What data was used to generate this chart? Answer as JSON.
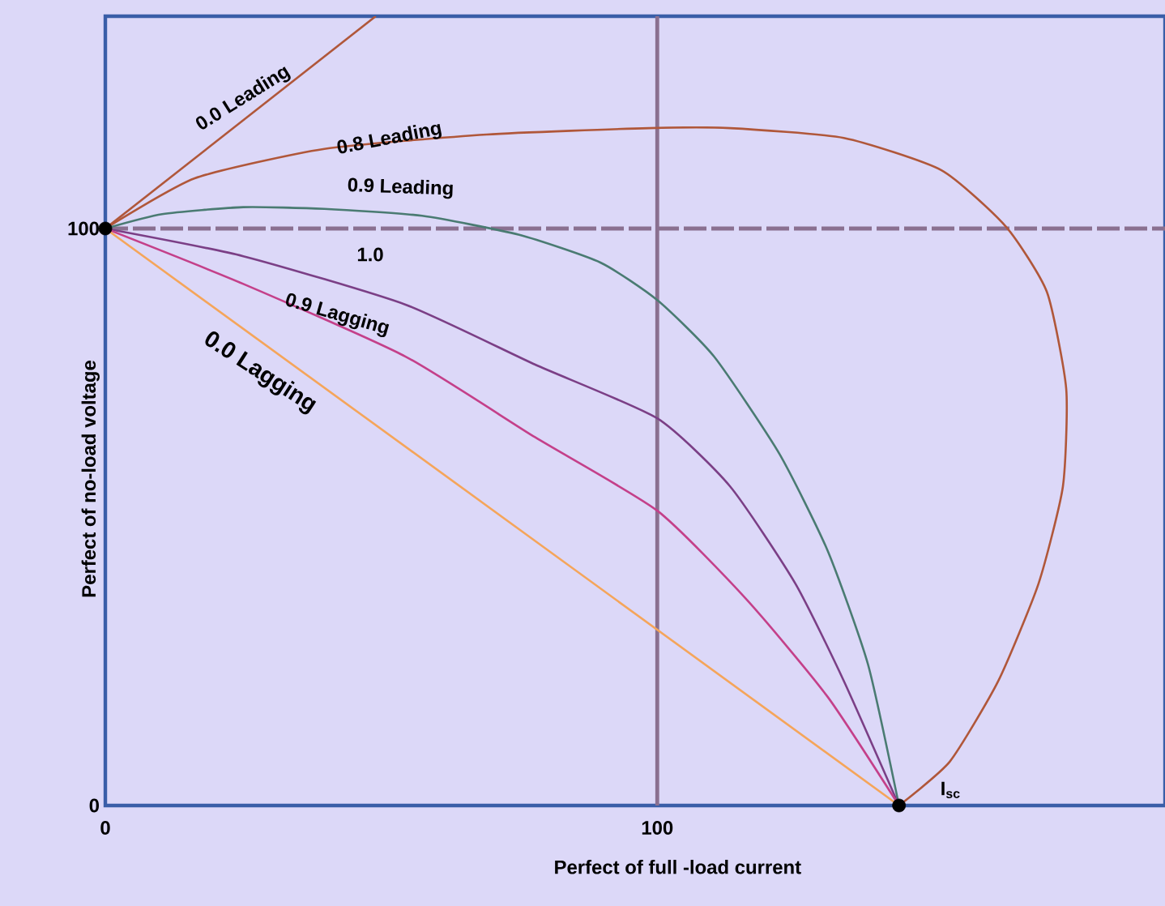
{
  "chart_data": {
    "type": "line",
    "xlabel": "Perfect of full -load current",
    "ylabel": "Perfect of no-load voltage",
    "xlim": [
      0,
      192
    ],
    "ylim": [
      0,
      136.8
    ],
    "xticks": [
      0,
      100
    ],
    "yticks": [
      0,
      100
    ],
    "grid": false,
    "legend": false,
    "marker": "none",
    "line_style": "solid",
    "ref_lines": [
      {
        "axis": "x",
        "value": 100,
        "color": "#8a7090",
        "line_style": "solid"
      },
      {
        "axis": "y",
        "value": 100,
        "color": "#8a7090",
        "line_style": "dashed"
      }
    ],
    "annotations": [
      {
        "text": "I$_{sc}$",
        "x": 143.8,
        "y": 0
      }
    ],
    "series": [
      {
        "name": "0.0 Leading",
        "color": "#b0573a",
        "x": [
          0,
          49
        ],
        "values": [
          100,
          136.8
        ]
      },
      {
        "name": "0.8 Leading",
        "color": "#b0573a",
        "x": [
          0,
          16.2,
          39.7,
          69.1,
          98.5,
          113.2,
          133.8,
          151.5,
          163.2,
          170.6,
          174.1,
          173.5,
          169.1,
          161.8,
          153,
          143.8
        ],
        "values": [
          100,
          108.7,
          113.8,
          116.3,
          117.4,
          117.4,
          115.7,
          110.1,
          100.3,
          89,
          72.2,
          55.3,
          38.5,
          21.6,
          7.6,
          0
        ]
      },
      {
        "name": "0.9 Leading",
        "color": "#4a7b72",
        "x": [
          0,
          10.3,
          25,
          39.7,
          57.4,
          75,
          89.7,
          100,
          110.3,
          122.1,
          130.9,
          138.2,
          143.8
        ],
        "values": [
          100,
          102.5,
          103.7,
          103.4,
          102.2,
          98.9,
          94.1,
          87.6,
          77.8,
          61,
          44.1,
          24.4,
          0
        ]
      },
      {
        "name": "1.0",
        "color": "#7b3f86",
        "x": [
          0,
          25,
          54.4,
          77.9,
          100,
          113.2,
          125,
          133.8,
          143.8
        ],
        "values": [
          100,
          95.2,
          86.8,
          76.4,
          67.1,
          55.3,
          38.5,
          21.6,
          0
        ]
      },
      {
        "name": "0.9 Lagging",
        "color": "#c4408a",
        "x": [
          0,
          25,
          54.4,
          77.9,
          100,
          116.2,
          130.9,
          143.8
        ],
        "values": [
          100,
          90.4,
          77.8,
          63.8,
          51.1,
          35.7,
          18.8,
          0
        ]
      },
      {
        "name": "0.0 Lagging",
        "color": "#f5a55a",
        "x": [
          0,
          143.8
        ],
        "values": [
          100,
          0
        ]
      },
      {
        "type": "scatter",
        "marker": "circle",
        "color": "#000000",
        "x": [
          0,
          143.8
        ],
        "values": [
          100,
          0
        ]
      }
    ]
  }
}
